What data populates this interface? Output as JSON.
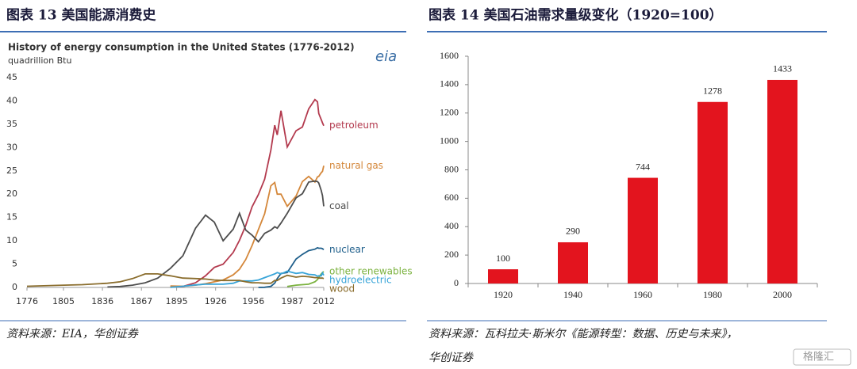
{
  "chart_data": [
    {
      "type": "line",
      "caption": "图表 13   美国能源消费史",
      "title": "History of energy consumption in the United States (1776-2012)",
      "y_label": "quadrillion Btu",
      "logo": "eia",
      "x": [
        1776,
        1800,
        1820,
        1840,
        1850,
        1860,
        1870,
        1880,
        1890,
        1900,
        1910,
        1918,
        1925,
        1932,
        1940,
        1945,
        1950,
        1955,
        1960,
        1965,
        1970,
        1973,
        1975,
        1978,
        1983,
        1990,
        1995,
        2000,
        2005,
        2007,
        2008,
        2010,
        2011,
        2012
      ],
      "xlim": [
        1776,
        2012
      ],
      "xticks": [
        1776,
        1805,
        1836,
        1867,
        1895,
        1926,
        1956,
        1987,
        2012
      ],
      "ylim": [
        0,
        45
      ],
      "yticks": [
        0,
        5,
        10,
        15,
        20,
        25,
        30,
        35,
        40,
        45
      ],
      "series": [
        {
          "name": "petroleum",
          "color": "#b33a4e",
          "values": [
            null,
            null,
            null,
            null,
            null,
            null,
            null,
            null,
            0.15,
            0.2,
            1.0,
            2.5,
            4.3,
            5.0,
            7.5,
            10.1,
            13.3,
            17.3,
            19.9,
            23.2,
            29.5,
            34.8,
            32.7,
            37.9,
            30.1,
            33.6,
            34.4,
            38.3,
            40.3,
            39.8,
            37.3,
            36.0,
            35.3,
            34.7
          ]
        },
        {
          "name": "natural gas",
          "color": "#d4873a",
          "values": [
            null,
            null,
            null,
            null,
            null,
            null,
            null,
            null,
            0.3,
            0.25,
            0.5,
            0.8,
            1.2,
            1.6,
            2.7,
            3.9,
            6.0,
            9.0,
            12.4,
            15.8,
            21.8,
            22.5,
            20.0,
            20.0,
            17.4,
            19.6,
            22.7,
            23.8,
            22.6,
            23.7,
            23.8,
            24.6,
            24.9,
            26.1
          ]
        },
        {
          "name": "coal",
          "color": "#4d4d4d",
          "values": [
            null,
            null,
            null,
            0.1,
            0.2,
            0.5,
            1.0,
            2.0,
            4.1,
            6.8,
            12.7,
            15.5,
            14.0,
            10.0,
            12.5,
            15.9,
            12.3,
            11.2,
            9.8,
            11.6,
            12.3,
            13.0,
            12.7,
            13.8,
            15.9,
            19.2,
            20.1,
            22.6,
            22.8,
            22.7,
            22.4,
            20.8,
            19.7,
            17.4
          ]
        },
        {
          "name": "nuclear",
          "color": "#1f5f8b",
          "values": [
            null,
            null,
            null,
            null,
            null,
            null,
            null,
            null,
            null,
            null,
            null,
            null,
            null,
            null,
            null,
            null,
            null,
            null,
            0.0,
            0.04,
            0.24,
            0.91,
            1.9,
            3.0,
            3.2,
            6.1,
            7.1,
            7.9,
            8.2,
            8.5,
            8.4,
            8.4,
            8.3,
            8.1
          ]
        },
        {
          "name": "other renewables",
          "color": "#7bb23f",
          "values": [
            null,
            null,
            null,
            null,
            null,
            null,
            null,
            null,
            null,
            null,
            null,
            null,
            null,
            null,
            null,
            null,
            null,
            null,
            null,
            null,
            null,
            null,
            null,
            null,
            0.2,
            0.5,
            0.6,
            0.7,
            1.2,
            1.7,
            2.1,
            2.9,
            3.2,
            3.4
          ]
        },
        {
          "name": "hydroelectric",
          "color": "#37a4d8",
          "values": [
            null,
            null,
            null,
            null,
            null,
            null,
            null,
            null,
            0.02,
            0.25,
            0.54,
            0.7,
            0.7,
            0.7,
            0.9,
            1.4,
            1.4,
            1.4,
            1.6,
            2.1,
            2.6,
            2.9,
            3.2,
            2.9,
            3.5,
            3.0,
            3.2,
            2.8,
            2.7,
            2.4,
            2.5,
            2.5,
            3.1,
            2.6
          ]
        },
        {
          "name": "wood",
          "color": "#8a6d2d",
          "values": [
            0.25,
            0.45,
            0.6,
            0.9,
            1.2,
            1.9,
            2.9,
            2.9,
            2.5,
            2.0,
            1.9,
            1.8,
            1.6,
            1.5,
            1.5,
            1.5,
            1.2,
            1.0,
            1.0,
            0.9,
            0.9,
            1.5,
            1.5,
            2.0,
            2.6,
            2.2,
            2.4,
            2.3,
            2.1,
            2.1,
            2.0,
            2.0,
            2.0,
            1.9
          ]
        }
      ],
      "source": "资料来源：EIA，华创证券"
    },
    {
      "type": "bar",
      "caption": "图表 14   美国石油需求量级变化（1920=100）",
      "categories": [
        "1920",
        "1940",
        "1960",
        "1980",
        "2000"
      ],
      "values": [
        100,
        290,
        744,
        1278,
        1433
      ],
      "color": "#e3141e",
      "ylim": [
        0,
        1600
      ],
      "yticks": [
        0,
        200,
        400,
        600,
        800,
        1000,
        1200,
        1400,
        1600
      ],
      "source": [
        "资料来源：瓦科拉夫·斯米尔《能源转型：数据、历史与未来》，",
        "华创证券"
      ]
    }
  ],
  "watermark": "格隆汇"
}
